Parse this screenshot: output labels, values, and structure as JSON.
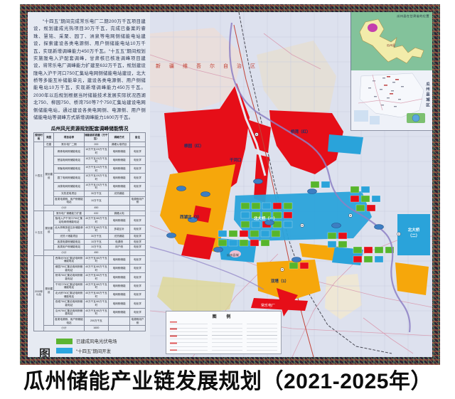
{
  "poster": {
    "intro_text": "“十四五”期间完成常乐电厂二期200万千瓦项目建设，规划建成光热项目30万千瓦，完成已备案的睿珠、慧铭、采聚、园丁、洲泉等电网侧储能电站建设，探索建设各类电源侧、用户侧储能电站10万千瓦，实现新增调峰能力450万千瓦。“十五五”期间规划实施陇电入沪配套调峰，甘肃核已核准调峰项目建设，将常乐电厂调峰能力扩建至632万千瓦，规划建设陇电入沪干河口750汇集站电网侧储能电站建设，北大桥等多能互补储能单元，建设各类电源侧、用户侧储能电站10万千瓦，实现新增调峰能力450万千瓦。2030年以后规划根据当时储能技术发展实际状况西湖北750、柳园750、桥湾750等7个750汇集站建设电网侧储能电站，通过建设各类电网侧、电源侧、用户侧储能电站等调峰方式新增调峰能力1600万千瓦。",
    "table": {
      "title": "瓜州风光资源规划配套调峰储能情况",
      "headers": [
        "规划时段",
        "类型",
        "项目名称",
        "储能装机容量（万千瓦）",
        "调峰方式",
        "备注"
      ],
      "col_widths": [
        "9%",
        "9%",
        "27%",
        "22%",
        "19%",
        "14%"
      ],
      "rows": [
        {
          "c": [
            {
              "t": "十四五",
              "rs": 9
            },
            {
              "t": "在建"
            },
            {
              "t": "常乐电厂二期"
            },
            {
              "t": "200"
            },
            {
              "t": "调峰火电项目"
            },
            {
              "t": ""
            }
          ]
        },
        {
          "c": [
            {
              "t": "规划建设",
              "rs": 7
            },
            {
              "t": "睿珠电网侧储能电站"
            },
            {
              "t": "10万千瓦/20万千瓦时"
            },
            {
              "t": "电网侧储能"
            },
            {
              "t": "电化学"
            }
          ]
        },
        {
          "c": [
            {
              "t": "慧铭电网侧储能电站"
            },
            {
              "t": "10万千瓦/20万千瓦时"
            },
            {
              "t": "电网侧储能"
            },
            {
              "t": "电化学"
            }
          ]
        },
        {
          "c": [
            {
              "t": "采聚电网侧储能电站"
            },
            {
              "t": "10万千瓦/20万千瓦时"
            },
            {
              "t": "电网侧储能"
            },
            {
              "t": "电化学"
            }
          ]
        },
        {
          "c": [
            {
              "t": "园丁电网侧储能电站"
            },
            {
              "t": "10万千瓦/20万千瓦时"
            },
            {
              "t": "电网侧储能"
            },
            {
              "t": "电化学"
            }
          ]
        },
        {
          "c": [
            {
              "t": "洲泉电网侧储能电站"
            },
            {
              "t": "10万千瓦/20万千瓦时"
            },
            {
              "t": "电网侧储能"
            },
            {
              "t": "电化学"
            }
          ]
        },
        {
          "c": [
            {
              "t": "光热发电项目"
            },
            {
              "t": "30万千瓦"
            },
            {
              "t": "光热储能"
            },
            {
              "t": ""
            }
          ]
        },
        {
          "c": [
            {
              "t": "各类电源侧、用户侧储能电站"
            },
            {
              "t": "10万千瓦"
            },
            {
              "t": ""
            },
            {
              "t": "电源侧用户侧"
            }
          ]
        },
        {
          "c": [
            {
              "t": "小计",
              "cs": 2
            },
            {
              "t": "450"
            },
            {
              "t": ""
            },
            {
              "t": ""
            }
          ]
        },
        {
          "c": [
            {
              "t": "十五五",
              "rs": 7
            },
            {
              "t": "规划建设",
              "rs": 6
            },
            {
              "t": "常乐电厂调峰能力扩建"
            },
            {
              "t": "632"
            },
            {
              "t": "调峰火电"
            },
            {
              "t": ""
            }
          ]
        },
        {
          "c": [
            {
              "t": "陇电入沪干河口750汇集站电网侧储能电站"
            },
            {
              "t": "40万千瓦/80万千瓦时"
            },
            {
              "t": "电网侧储能"
            },
            {
              "t": "电化学"
            }
          ]
        },
        {
          "c": [
            {
              "t": "北大桥等多能互补储能单元"
            },
            {
              "t": "40万千瓦/80万千瓦时"
            },
            {
              "t": "多能互补"
            },
            {
              "t": "电化学"
            }
          ]
        },
        {
          "c": [
            {
              "t": "光热＋储能项目"
            },
            {
              "t": "30万千瓦"
            },
            {
              "t": "光热储能"
            },
            {
              "t": "电化学"
            }
          ]
        },
        {
          "c": [
            {
              "t": "各类电源侧储能电站"
            },
            {
              "t": "10万千瓦"
            },
            {
              "t": "电源侧"
            },
            {
              "t": "电化学"
            }
          ]
        },
        {
          "c": [
            {
              "t": "各类用户侧储能电站"
            },
            {
              "t": "10万千瓦"
            },
            {
              "t": "用户侧"
            },
            {
              "t": "电化学"
            }
          ]
        },
        {
          "c": [
            {
              "t": "小计",
              "cs": 2
            },
            {
              "t": "450"
            },
            {
              "t": ""
            },
            {
              "t": ""
            }
          ]
        },
        {
          "c": [
            {
              "t": "2030年以后",
              "rs": 9
            },
            {
              "t": "规划建设",
              "rs": 8
            },
            {
              "t": "西湖北750汇集站电网侧储能电站"
            },
            {
              "t": "40万千瓦/80万千瓦时"
            },
            {
              "t": "电网侧储能"
            },
            {
              "t": "电化学"
            }
          ]
        },
        {
          "c": [
            {
              "t": "柳园750汇集站电网侧储能电站"
            },
            {
              "t": "40万千瓦/80万千瓦时"
            },
            {
              "t": "电网侧储能"
            },
            {
              "t": "电化学"
            }
          ]
        },
        {
          "c": [
            {
              "t": "桥湾750汇集站电网侧储能电站"
            },
            {
              "t": "40万千瓦/80万千瓦时"
            },
            {
              "t": "电网侧储能"
            },
            {
              "t": "电化学"
            }
          ]
        },
        {
          "c": [
            {
              "t": "干河口750汇集站电网侧储能电站"
            },
            {
              "t": "40万千瓦/80万千瓦时"
            },
            {
              "t": "电网侧储能"
            },
            {
              "t": "电化学"
            }
          ]
        },
        {
          "c": [
            {
              "t": "北大桥750汇集站电网侧储能电站"
            },
            {
              "t": "40万千瓦/80万千瓦时"
            },
            {
              "t": "电网侧储能"
            },
            {
              "t": "电化学"
            }
          ]
        },
        {
          "c": [
            {
              "t": "双塔750汇集站电网侧储能电站"
            },
            {
              "t": "40万千瓦/80万千瓦时"
            },
            {
              "t": "电网侧储能"
            },
            {
              "t": "电化学"
            }
          ]
        },
        {
          "c": [
            {
              "t": "瓜州750汇集站电网侧储能电站"
            },
            {
              "t": "40万千瓦/80万千瓦时"
            },
            {
              "t": "电网侧储能"
            },
            {
              "t": "电化学"
            }
          ]
        },
        {
          "c": [
            {
              "t": "各类电源侧、用户侧储能电站"
            },
            {
              "t": "200万千瓦"
            },
            {
              "t": ""
            },
            {
              "t": "电源侧用户侧"
            }
          ]
        },
        {
          "c": [
            {
              "t": "小计",
              "cs": 2
            },
            {
              "t": "1600"
            },
            {
              "t": ""
            },
            {
              "t": ""
            }
          ]
        }
      ]
    },
    "legend": {
      "title_chars": [
        "图",
        "例"
      ],
      "items": [
        {
          "shape": "rect",
          "color": "#5cb431",
          "label": "已建成风电光伏电场"
        },
        {
          "shape": "rect",
          "color": "#2ba6e0",
          "label": "“十四五”期间开发"
        },
        {
          "shape": "rect",
          "color": "#f8aa00",
          "label": "“十五五”期间开发"
        },
        {
          "shape": "rect",
          "color": "#e60012",
          "label": "2030年以后开发"
        },
        {
          "shape": "oval",
          "color": "#4b86c0",
          "label": "规划储能电站"
        },
        {
          "shape": "symbol",
          "symbol": "◎",
          "color": "#27476e",
          "label": "规划750kV汇集站"
        }
      ]
    },
    "map": {
      "labels": {
        "xinjiang": "新疆维吾尔自治区",
        "region_liuyuan": "柳园（红）",
        "region_qiaowan": "桥湾（红）",
        "region_ganhekou": "干河口",
        "region_xihubei": "西湖北（3）",
        "region_beidaqiao1": "北大桥（一）",
        "region_beidaqiao2a": "北大桥",
        "region_beidaqiao2b": "（二）",
        "region_shuangta": "双塔（1）",
        "station_changle": "常乐电厂",
        "town": "瓜州县城",
        "map_legend_title": "图  例"
      },
      "insets": {
        "gansu_title": "瓜州县在甘肃省的位置",
        "gansu_marker": "瓜州县",
        "city_label": "瓜州县城区"
      }
    }
  },
  "footer": {
    "title": "瓜州储能产业链发展规划（2021-2025年）"
  },
  "colors": {
    "built_green": "#57b52c",
    "plan14_blue": "#2aa3da",
    "plan15_orange": "#f6a70b",
    "after2030_red": "#e60e18",
    "storage_oval_blue": "#3d7ec2"
  }
}
